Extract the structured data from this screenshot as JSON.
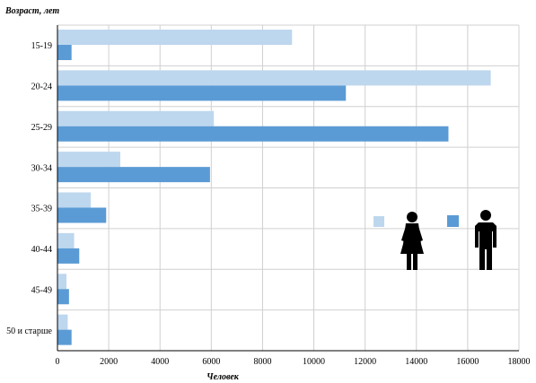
{
  "chart_data": {
    "type": "bar",
    "orientation": "horizontal",
    "ylabel": "Возраст, лет",
    "xlabel": "Человек",
    "categories": [
      "15-19",
      "20-24",
      "25-29",
      "30-34",
      "35-39",
      "40-44",
      "45-49",
      "50 и старше"
    ],
    "series": [
      {
        "key": "female",
        "icon": "woman-icon",
        "color": "#bdd7ee",
        "values": [
          9150,
          16900,
          6100,
          2450,
          1300,
          650,
          350,
          400
        ]
      },
      {
        "key": "male",
        "icon": "man-icon",
        "color": "#5b9bd5",
        "values": [
          550,
          11250,
          15250,
          5950,
          1900,
          850,
          450,
          550
        ]
      }
    ],
    "xlim": [
      0,
      18000
    ],
    "xticks": [
      0,
      2000,
      4000,
      6000,
      8000,
      10000,
      12000,
      14000,
      16000,
      18000
    ],
    "grid": true,
    "legend_placement": "right"
  }
}
